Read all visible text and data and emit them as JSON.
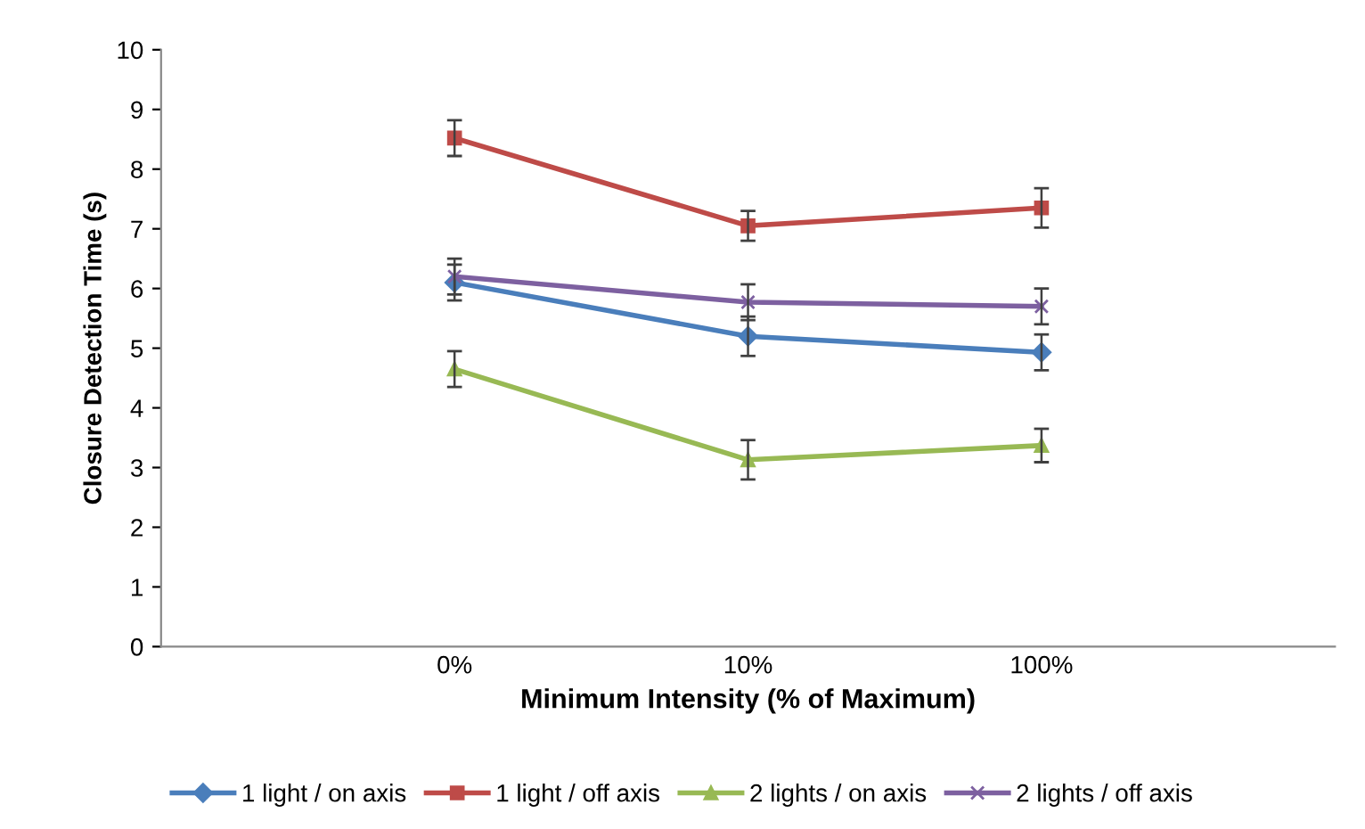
{
  "chart_data": {
    "type": "line",
    "xlabel": "Minimum Intensity (% of Maximum)",
    "ylabel": "Closure Detection Time (s)",
    "categories": [
      "0%",
      "10%",
      "100%"
    ],
    "ylim": [
      0,
      10
    ],
    "yticks": [
      0,
      1,
      2,
      3,
      4,
      5,
      6,
      7,
      8,
      9,
      10
    ],
    "grid": false,
    "legend": "bottom",
    "series": [
      {
        "name": "1 light / on axis",
        "color": "#4a7ebb",
        "marker": "diamond",
        "values": [
          6.1,
          5.2,
          4.93
        ],
        "errors": [
          0.3,
          0.33,
          0.3
        ]
      },
      {
        "name": "1 light / off axis",
        "color": "#be4b48",
        "marker": "square",
        "values": [
          8.52,
          7.05,
          7.35
        ],
        "errors": [
          0.3,
          0.25,
          0.33
        ]
      },
      {
        "name": "2 lights / on axis",
        "color": "#98b954",
        "marker": "triangle",
        "values": [
          4.65,
          3.13,
          3.37
        ],
        "errors": [
          0.3,
          0.33,
          0.28
        ]
      },
      {
        "name": "2 lights / off axis",
        "color": "#7d60a0",
        "marker": "cross",
        "values": [
          6.2,
          5.77,
          5.7
        ],
        "errors": [
          0.3,
          0.3,
          0.3
        ]
      }
    ]
  }
}
